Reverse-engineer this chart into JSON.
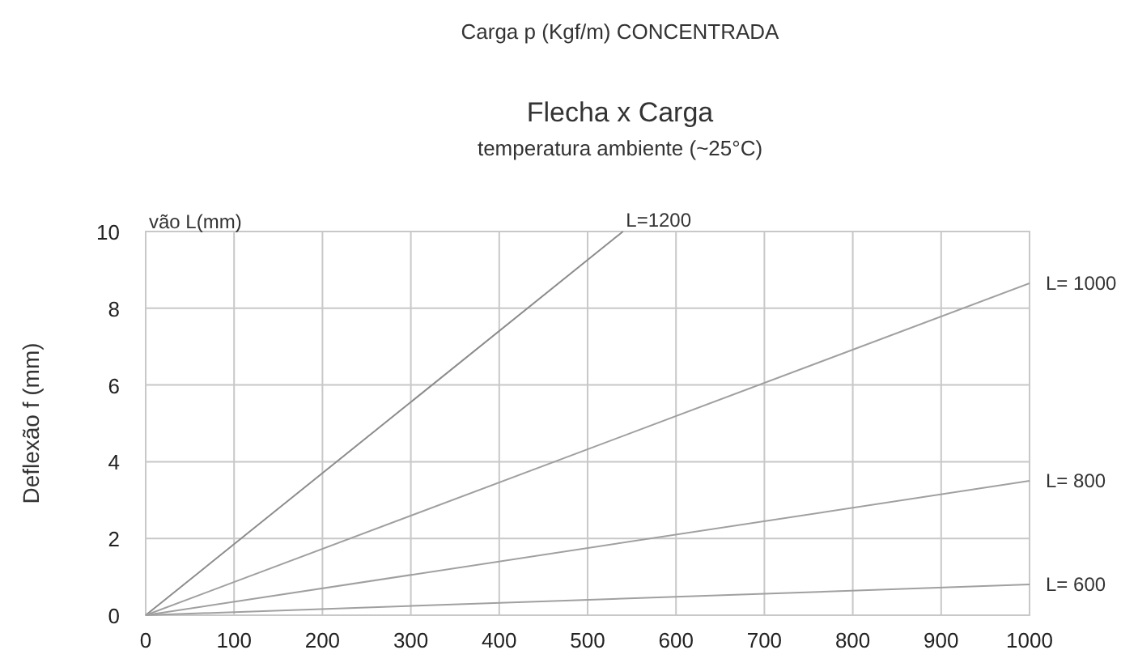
{
  "chart_data": {
    "type": "line",
    "title": "Flecha x Carga",
    "subtitle": "temperatura ambiente (~25°C)",
    "annotations": [
      "Carga p (Kgf/m) CONCENTRADA"
    ],
    "ylabel": "Deflexão f (mm)",
    "legend_title": "vão L(mm)",
    "xlim": [
      0,
      1000
    ],
    "ylim": [
      0,
      10
    ],
    "xticks": [
      0,
      100,
      200,
      300,
      400,
      500,
      600,
      700,
      800,
      900,
      1000
    ],
    "yticks": [
      0,
      2,
      4,
      6,
      8,
      10
    ],
    "grid": true,
    "marker": "none",
    "line_style": "solid",
    "series": [
      {
        "name": "L=1200",
        "color": "#8c8c8c",
        "x": [
          0,
          540
        ],
        "values": [
          0,
          10
        ]
      },
      {
        "name": "L= 1000",
        "color": "#a0a0a0",
        "x": [
          0,
          1000
        ],
        "values": [
          0,
          8.65
        ]
      },
      {
        "name": "L= 800",
        "color": "#a0a0a0",
        "x": [
          0,
          1000
        ],
        "values": [
          0,
          3.5
        ]
      },
      {
        "name": "L= 600",
        "color": "#a0a0a0",
        "x": [
          0,
          1000
        ],
        "values": [
          0,
          0.8
        ]
      }
    ]
  }
}
